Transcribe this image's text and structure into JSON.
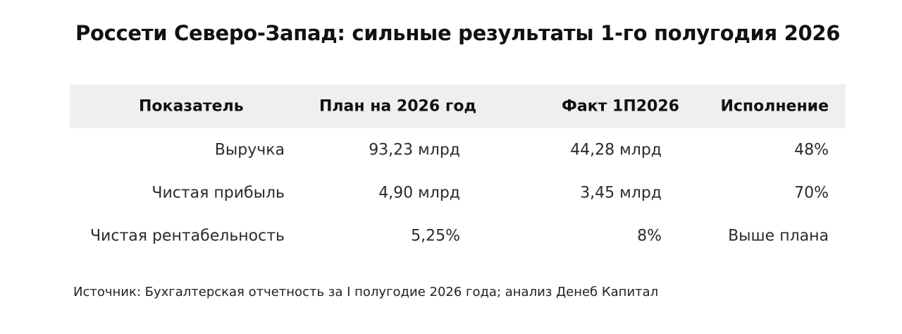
{
  "title": "Россети Северо-Запад: сильные результаты 1-го полугодия 2026",
  "table": {
    "headers": [
      "Показатель",
      "План на 2026 год",
      "Факт 1П2026",
      "Исполнение"
    ],
    "rows": [
      [
        "Выручка",
        "93,23 млрд",
        "44,28 млрд",
        "48%"
      ],
      [
        "Чистая прибыль",
        "4,90 млрд",
        "3,45 млрд",
        "70%"
      ],
      [
        "Чистая рентабельность",
        "5,25%",
        "8%",
        "Выше плана"
      ]
    ]
  },
  "source": "Источник: Бухгалтерская отчетность за I полугодие 2026 года; анализ Денеб Капитал"
}
